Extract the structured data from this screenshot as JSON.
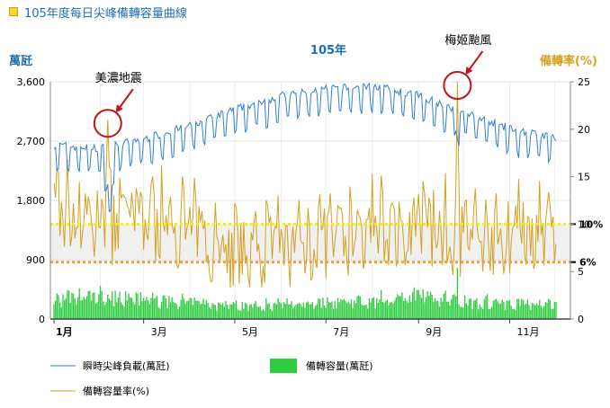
{
  "header": {
    "title": "105年度每日尖峰備轉容量曲線"
  },
  "chart_data": {
    "type": "line",
    "title": "105年",
    "yLeftLabel": "萬瓩",
    "yRightLabel": "備轉率(%)",
    "yLeftTicks": [
      "0",
      "900",
      "1,800",
      "2,700",
      "3,600"
    ],
    "yRightTicks": [
      "0",
      "5",
      "10",
      "15",
      "20",
      "25"
    ],
    "yLeftRange": [
      0,
      3600
    ],
    "yRightRange": [
      0,
      25
    ],
    "xTicks": [
      "1月",
      "3月",
      "5月",
      "7月",
      "9月",
      "11月"
    ],
    "xTickMonths": [
      1,
      3,
      5,
      7,
      9,
      11
    ],
    "refLines": [
      {
        "label": "10%",
        "value": 10,
        "color": "#f5f000"
      },
      {
        "label": "6%",
        "value": 6,
        "color": "#f0a040"
      }
    ],
    "annotations": [
      {
        "text": "美濃地震",
        "date": "2016-02-06",
        "value": 21
      },
      {
        "text": "梅姬颱風",
        "date": "2016-09-27",
        "value": 25
      }
    ],
    "series": [
      {
        "name": "瞬時尖峰負載(萬瓩)",
        "color": "#2f7fd8",
        "kind": "line",
        "axis": "left",
        "monthly": [
          2600,
          2550,
          2700,
          2900,
          3150,
          3350,
          3450,
          3500,
          3350,
          3100,
          2850,
          2700
        ]
      },
      {
        "name": "備轉容量(萬瓩)",
        "color": "#2ecc40",
        "kind": "bar",
        "axis": "left",
        "monthly": [
          270,
          330,
          280,
          230,
          190,
          200,
          250,
          260,
          330,
          250,
          230,
          200
        ]
      },
      {
        "name": "備轉容量率(%)",
        "color": "#d4a020",
        "kind": "line",
        "axis": "right",
        "monthly": [
          11,
          9.5,
          10,
          9,
          6.5,
          7,
          8,
          8.5,
          9.5,
          8,
          8.5,
          9
        ]
      }
    ]
  }
}
